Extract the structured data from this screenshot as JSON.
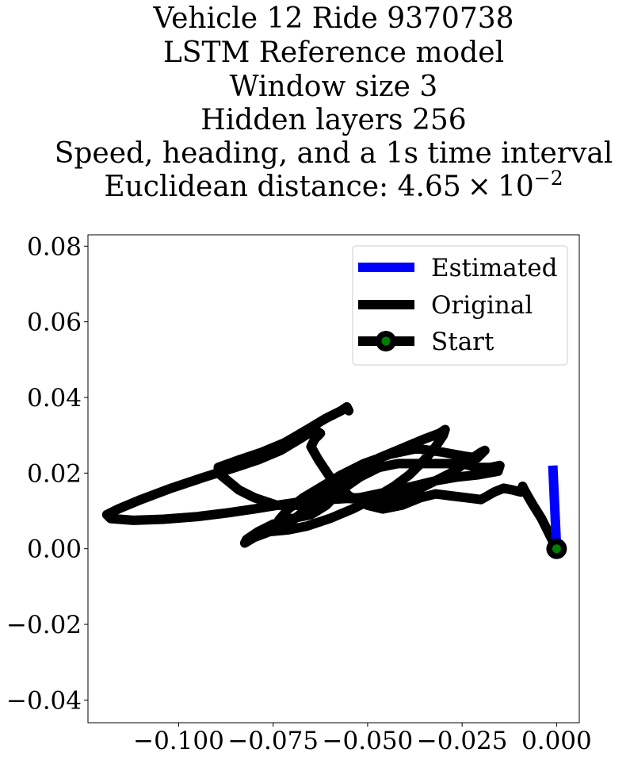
{
  "chart_data": {
    "type": "line",
    "title_lines": [
      "Vehicle 12 Ride 9370738",
      "LSTM Reference model",
      "Window size 3",
      "Hidden layers 256",
      "Speed, heading, and a 1s time interval"
    ],
    "title_metric_prefix": "Euclidean distance: 4.65",
    "title_metric_times": "×",
    "title_metric_base": "10",
    "title_metric_exponent": "−2",
    "xlabel": "",
    "ylabel": "",
    "xlim": [
      -0.124,
      0.006
    ],
    "ylim": [
      -0.046,
      0.083
    ],
    "x_ticks": [
      -0.1,
      -0.075,
      -0.05,
      -0.025,
      0.0
    ],
    "x_tick_labels": [
      "−0.100",
      "−0.075",
      "−0.050",
      "−0.025",
      "0.000"
    ],
    "y_ticks": [
      0.08,
      0.06,
      0.04,
      0.02,
      0.0,
      -0.02,
      -0.04
    ],
    "y_tick_labels": [
      "0.08",
      "0.06",
      "0.04",
      "0.02",
      "0.00",
      "−0.02",
      "−0.04"
    ],
    "grid": false,
    "legend_position": "upper-right",
    "series": [
      {
        "name": "Estimated",
        "color": "#0000ff",
        "points": [
          [
            -0.001,
            0.022
          ],
          [
            -0.0005,
            0.011
          ],
          [
            0.0,
            0.0
          ]
        ]
      },
      {
        "name": "Original",
        "color": "#000000",
        "points": [
          [
            0.0,
            0.0
          ],
          [
            -0.0015,
            0.003
          ],
          [
            -0.004,
            0.008
          ],
          [
            -0.0065,
            0.012
          ],
          [
            -0.0085,
            0.0155
          ],
          [
            -0.009,
            0.0165
          ],
          [
            -0.0095,
            0.015
          ],
          [
            -0.0115,
            0.0155
          ],
          [
            -0.014,
            0.016
          ],
          [
            -0.0165,
            0.015
          ],
          [
            -0.02,
            0.013
          ],
          [
            -0.024,
            0.0135
          ],
          [
            -0.028,
            0.014
          ],
          [
            -0.032,
            0.0145
          ],
          [
            -0.036,
            0.0135
          ],
          [
            -0.041,
            0.0115
          ],
          [
            -0.046,
            0.0105
          ],
          [
            -0.05,
            0.0115
          ],
          [
            -0.055,
            0.014
          ],
          [
            -0.06,
            0.019
          ],
          [
            -0.063,
            0.0235
          ],
          [
            -0.065,
            0.027
          ],
          [
            -0.064,
            0.029
          ],
          [
            -0.0625,
            0.0305
          ],
          [
            -0.064,
            0.0315
          ],
          [
            -0.068,
            0.029
          ],
          [
            -0.073,
            0.026
          ],
          [
            -0.079,
            0.0235
          ],
          [
            -0.085,
            0.0215
          ],
          [
            -0.093,
            0.019
          ],
          [
            -0.102,
            0.016
          ],
          [
            -0.11,
            0.013
          ],
          [
            -0.116,
            0.0105
          ],
          [
            -0.119,
            0.009
          ],
          [
            -0.118,
            0.008
          ],
          [
            -0.112,
            0.0075
          ],
          [
            -0.104,
            0.0078
          ],
          [
            -0.095,
            0.0085
          ],
          [
            -0.087,
            0.0095
          ],
          [
            -0.08,
            0.0105
          ],
          [
            -0.074,
            0.0115
          ],
          [
            -0.067,
            0.0125
          ],
          [
            -0.06,
            0.013
          ],
          [
            -0.052,
            0.0135
          ],
          [
            -0.045,
            0.015
          ],
          [
            -0.038,
            0.0165
          ],
          [
            -0.032,
            0.018
          ],
          [
            -0.026,
            0.019
          ],
          [
            -0.021,
            0.0195
          ],
          [
            -0.0155,
            0.0205
          ],
          [
            -0.015,
            0.022
          ],
          [
            -0.0175,
            0.0215
          ],
          [
            -0.021,
            0.0215
          ],
          [
            -0.025,
            0.0225
          ],
          [
            -0.03,
            0.0225
          ],
          [
            -0.036,
            0.0225
          ],
          [
            -0.042,
            0.0225
          ],
          [
            -0.047,
            0.0215
          ],
          [
            -0.052,
            0.019
          ],
          [
            -0.057,
            0.0155
          ],
          [
            -0.061,
            0.0115
          ],
          [
            -0.065,
            0.009
          ],
          [
            -0.07,
            0.008
          ],
          [
            -0.075,
            0.0065
          ],
          [
            -0.079,
            0.0045
          ],
          [
            -0.082,
            0.0025
          ],
          [
            -0.0825,
            0.0015
          ],
          [
            -0.08,
            0.003
          ],
          [
            -0.076,
            0.0045
          ],
          [
            -0.071,
            0.005
          ],
          [
            -0.066,
            0.006
          ],
          [
            -0.06,
            0.008
          ],
          [
            -0.054,
            0.0105
          ],
          [
            -0.048,
            0.0135
          ],
          [
            -0.043,
            0.0165
          ],
          [
            -0.039,
            0.0195
          ],
          [
            -0.035,
            0.0235
          ],
          [
            -0.032,
            0.027
          ],
          [
            -0.03,
            0.03
          ],
          [
            -0.0295,
            0.0315
          ],
          [
            -0.031,
            0.0305
          ],
          [
            -0.035,
            0.029
          ],
          [
            -0.041,
            0.0265
          ],
          [
            -0.047,
            0.024
          ],
          [
            -0.053,
            0.0205
          ],
          [
            -0.058,
            0.017
          ],
          [
            -0.063,
            0.013
          ],
          [
            -0.068,
            0.009
          ],
          [
            -0.071,
            0.0065
          ],
          [
            -0.074,
            0.0055
          ],
          [
            -0.0735,
            0.0075
          ],
          [
            -0.071,
            0.0105
          ],
          [
            -0.067,
            0.0135
          ],
          [
            -0.062,
            0.0165
          ],
          [
            -0.057,
            0.0195
          ],
          [
            -0.051,
            0.0225
          ],
          [
            -0.044,
            0.025
          ],
          [
            -0.037,
            0.0265
          ],
          [
            -0.03,
            0.0255
          ],
          [
            -0.0245,
            0.0245
          ],
          [
            -0.021,
            0.024
          ],
          [
            -0.019,
            0.026
          ],
          [
            -0.02,
            0.0255
          ],
          [
            -0.023,
            0.0235
          ],
          [
            -0.028,
            0.02
          ],
          [
            -0.034,
            0.017
          ],
          [
            -0.04,
            0.014
          ],
          [
            -0.046,
            0.0125
          ],
          [
            -0.052,
            0.013
          ],
          [
            -0.057,
            0.0135
          ],
          [
            -0.062,
            0.0125
          ],
          [
            -0.068,
            0.0115
          ],
          [
            -0.074,
            0.0115
          ],
          [
            -0.08,
            0.0135
          ],
          [
            -0.084,
            0.0155
          ],
          [
            -0.0895,
            0.02
          ],
          [
            -0.0895,
            0.0215
          ],
          [
            -0.084,
            0.0235
          ],
          [
            -0.078,
            0.0255
          ],
          [
            -0.072,
            0.028
          ],
          [
            -0.066,
            0.0315
          ],
          [
            -0.061,
            0.0345
          ],
          [
            -0.057,
            0.0365
          ],
          [
            -0.0555,
            0.0375
          ],
          [
            -0.055,
            0.0365
          ]
        ]
      }
    ],
    "start": {
      "name": "Start",
      "x": 0.0,
      "y": 0.0,
      "marker_edge_color": "#000000",
      "marker_face_color": "#008000"
    },
    "legend": [
      "Estimated",
      "Original",
      "Start"
    ]
  }
}
